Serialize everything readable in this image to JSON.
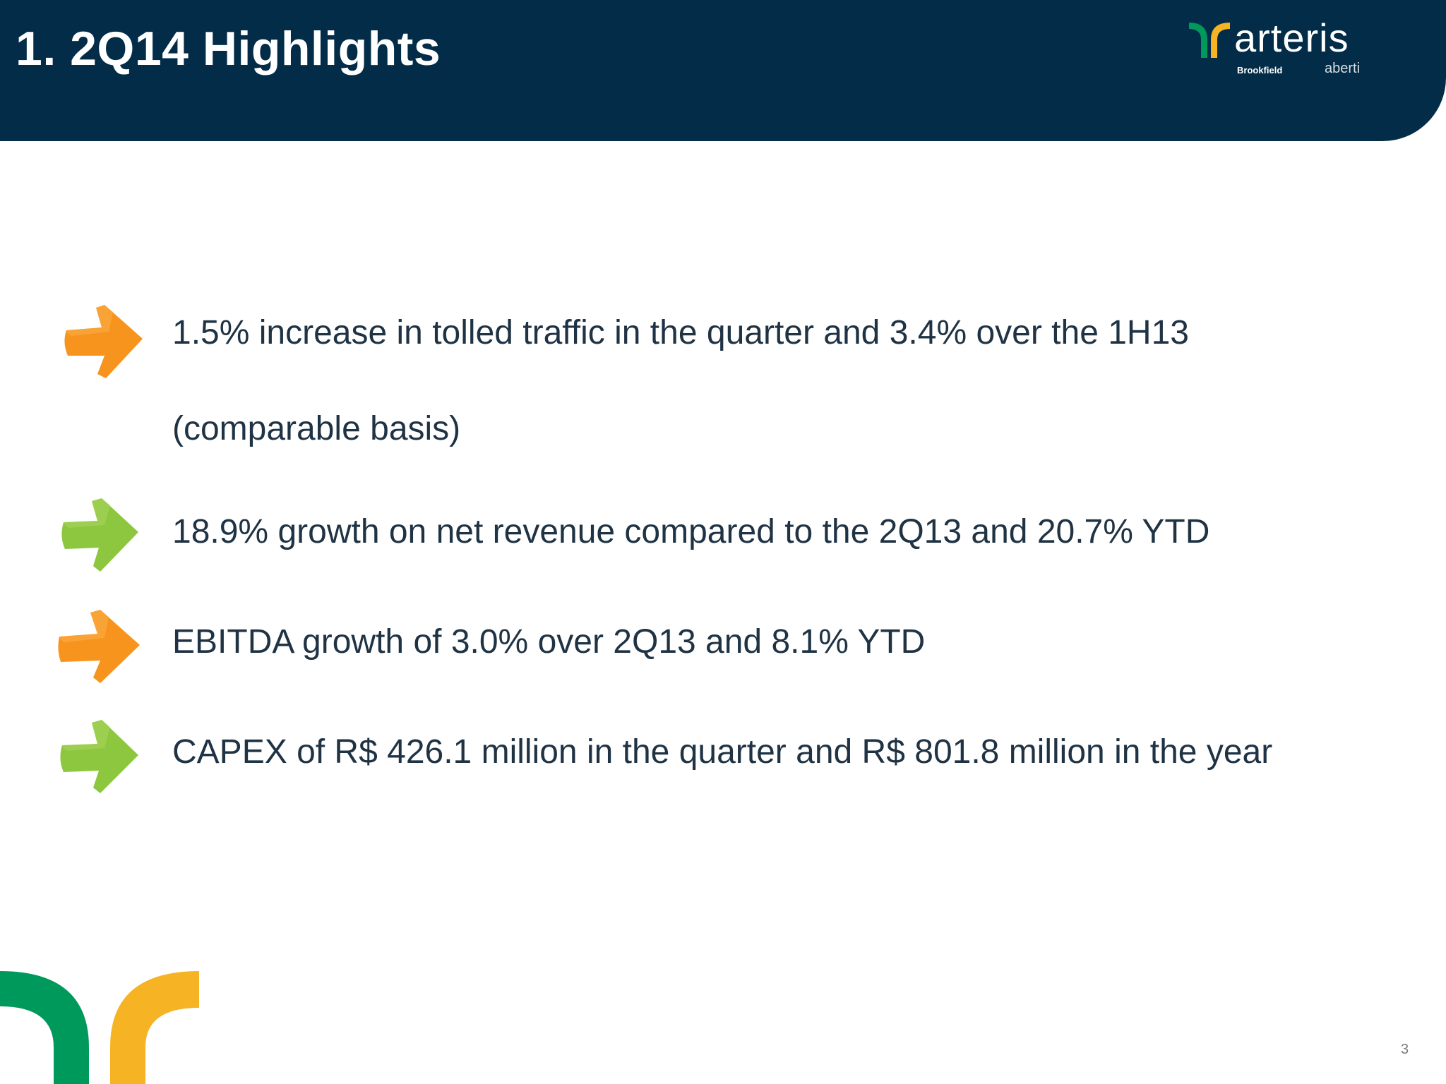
{
  "slide": {
    "title": "1. 2Q14 Highlights",
    "page_number": "3"
  },
  "logo": {
    "wordmark": "arteris",
    "partner_left": "Brookfield",
    "partner_right": "aberti"
  },
  "colors": {
    "header_background": "#022c47",
    "text_dark": "#1f3344",
    "arrow_orange": "#f7941d",
    "arrow_green": "#8dc63f",
    "brand_green": "#00995c",
    "brand_yellow": "#f6b324"
  },
  "bullets": [
    {
      "icon": "orange-arrow-icon",
      "text": "1.5% increase in tolled traffic in the quarter and 3.4% over the 1H13 (comparable basis)"
    },
    {
      "icon": "green-arrow-icon",
      "text": "18.9% growth on net revenue compared to the 2Q13 and 20.7% YTD"
    },
    {
      "icon": "orange-arrow-icon",
      "text": "EBITDA growth of 3.0% over 2Q13 and 8.1% YTD"
    },
    {
      "icon": "green-arrow-icon",
      "text": "CAPEX of R$ 426.1 million in the quarter and R$ 801.8 million in the year"
    }
  ]
}
